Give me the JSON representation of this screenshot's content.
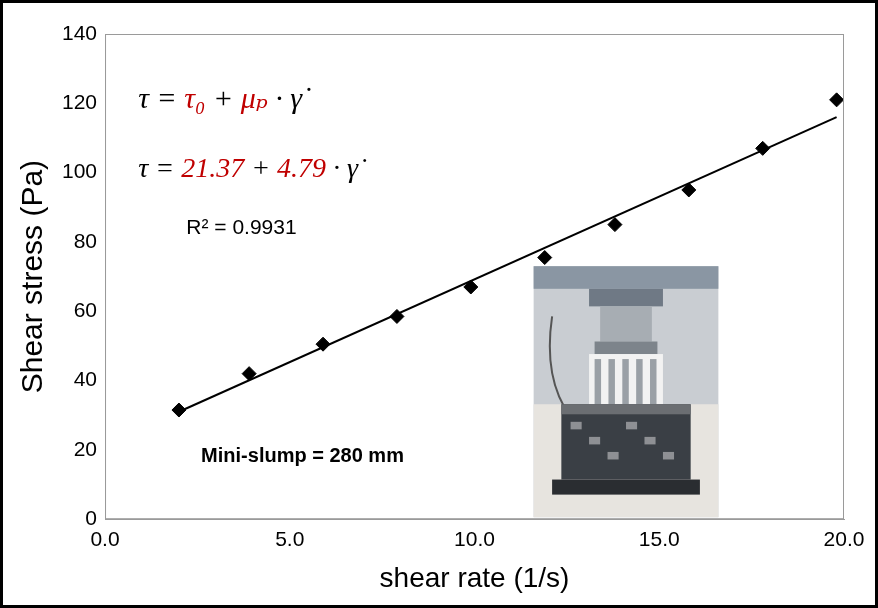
{
  "chart_data": {
    "type": "scatter",
    "x_label": "shear rate (1/s)",
    "y_label": "Shear stress (Pa)",
    "xlim": [
      0,
      20
    ],
    "xticks": [
      {
        "value": 0,
        "label": "0.0"
      },
      {
        "value": 5,
        "label": "5.0"
      },
      {
        "value": 10,
        "label": "10.0"
      },
      {
        "value": 15,
        "label": "15.0"
      },
      {
        "value": 20,
        "label": "20.0"
      }
    ],
    "ylim": [
      0,
      140
    ],
    "yticks": [
      0,
      20,
      40,
      60,
      80,
      100,
      120,
      140
    ],
    "grid": false,
    "series": [
      {
        "type": "scatter",
        "color": "#000000",
        "marker": "diamond",
        "x": [
          2.0,
          3.9,
          5.9,
          7.9,
          9.9,
          11.9,
          13.8,
          15.8,
          17.8,
          19.8
        ],
        "values": [
          31.5,
          42,
          50.5,
          58.5,
          67,
          75.5,
          85,
          95,
          107,
          121
        ]
      },
      {
        "type": "line",
        "color": "#000000",
        "line_style": "solid",
        "x": [
          2.0,
          19.8
        ],
        "values": [
          31,
          116
        ]
      }
    ],
    "annotations": [
      {
        "parts": [
          {
            "text": "τ = "
          },
          {
            "text": "τ₀",
            "color": "#c00000"
          },
          {
            "text": " + "
          },
          {
            "text": "μₚ",
            "color": "#c00000"
          },
          {
            "text": " · γ̇"
          }
        ]
      },
      {
        "parts": [
          {
            "text": "τ = "
          },
          {
            "text": "21.37",
            "color": "#c00000"
          },
          {
            "text": " + "
          },
          {
            "text": "4.79",
            "color": "#c00000"
          },
          {
            "text": " · γ̇"
          }
        ]
      },
      {
        "text": "R² = 0.9931"
      },
      {
        "text": "Mini-slump = 280 mm"
      }
    ]
  }
}
